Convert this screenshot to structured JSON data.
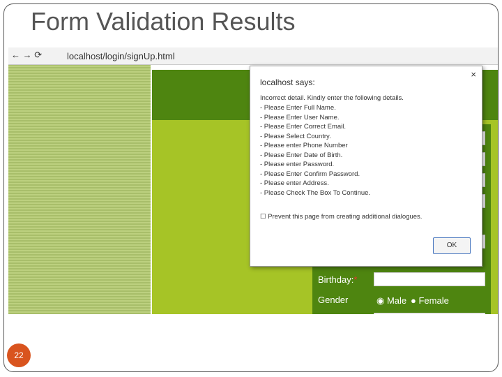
{
  "slide": {
    "title": "Form Validation Results",
    "page_number": "22"
  },
  "browser": {
    "url": "localhost/login/signUp.html"
  },
  "form": {
    "birthday_label": "Birthday:",
    "required_mark": "*",
    "gender_label": "Gender",
    "male": "Male",
    "female": "Female"
  },
  "dialog": {
    "title": "localhost says:",
    "close": "×",
    "intro": "Incorrect detail. Kindly enter the following details.",
    "messages": [
      "- Please Enter Full Name.",
      "- Please Enter User Name.",
      "- Please Enter Correct Email.",
      "- Please Select Country.",
      "- Please enter Phone Number",
      "- Please Enter Date of Birth.",
      "- Please enter Password.",
      "- Please Enter Confirm Password.",
      "- Please enter Address.",
      "- Please Check The Box To Continue."
    ],
    "checkbox_label": "Prevent this page from creating additional dialogues.",
    "ok": "OK"
  }
}
